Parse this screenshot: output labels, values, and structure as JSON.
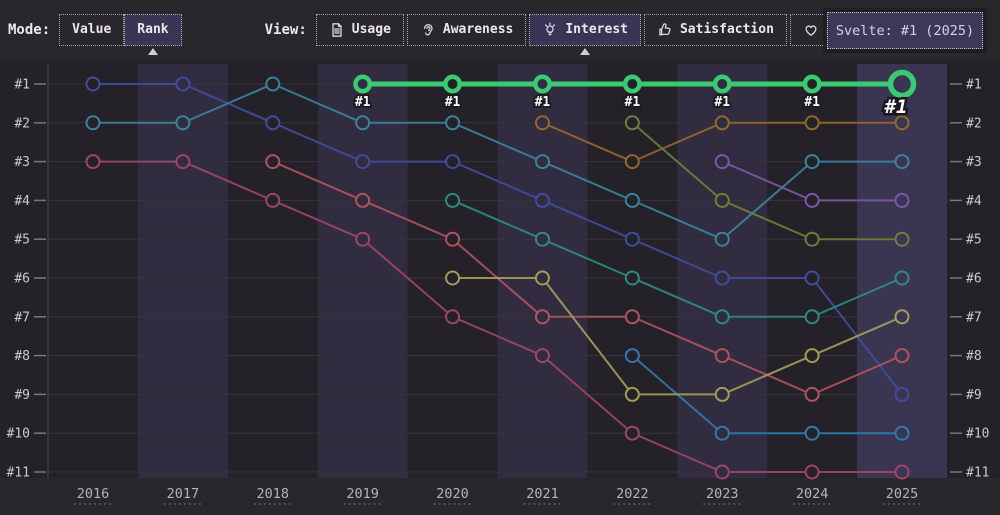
{
  "toolbar": {
    "mode_label": "Mode:",
    "modes": [
      {
        "label": "Value",
        "selected": false
      },
      {
        "label": "Rank",
        "selected": true
      }
    ],
    "view_label": "View:",
    "views": [
      {
        "label": "Usage",
        "icon": "document-icon",
        "selected": false
      },
      {
        "label": "Awareness",
        "icon": "ear-icon",
        "selected": false
      },
      {
        "label": "Interest",
        "icon": "lightbulb-icon",
        "selected": true
      },
      {
        "label": "Satisfaction",
        "icon": "thumbs-up-icon",
        "selected": false
      },
      {
        "label": "Appreciation",
        "icon": "heart-icon",
        "selected": false
      }
    ]
  },
  "tooltip": {
    "text": "Svelte: #1 (2025)"
  },
  "colors": {
    "accent_green": "#3acb72",
    "selected_bg": "#3b3455",
    "band": "#312c3f",
    "band_highlight": "#3a3551"
  },
  "chart_data": {
    "type": "line",
    "subtype": "bump-rank-chart",
    "x": [
      2016,
      2017,
      2018,
      2019,
      2020,
      2021,
      2022,
      2023,
      2024,
      2025
    ],
    "rank_labels": [
      "#1",
      "#2",
      "#3",
      "#4",
      "#5",
      "#6",
      "#7",
      "#8",
      "#9",
      "#10",
      "#11"
    ],
    "ylim": [
      1,
      11
    ],
    "grid": true,
    "highlight_year": 2025,
    "series": [
      {
        "name": "series-indigo",
        "color": "#3f4d9d",
        "highlight": false,
        "ranks": [
          1,
          1,
          2,
          3,
          3,
          4,
          5,
          6,
          6,
          9
        ]
      },
      {
        "name": "series-teal",
        "color": "#3a839b",
        "highlight": false,
        "ranks": [
          2,
          2,
          1,
          2,
          2,
          3,
          4,
          5,
          3,
          3
        ]
      },
      {
        "name": "series-maroon",
        "color": "#9d4566",
        "highlight": false,
        "ranks": [
          3,
          3,
          4,
          5,
          7,
          8,
          10,
          11,
          11,
          11
        ]
      },
      {
        "name": "series-blue",
        "color": "#2f7ab0",
        "highlight": false,
        "ranks": [
          null,
          null,
          null,
          null,
          null,
          null,
          8,
          10,
          10,
          10
        ]
      },
      {
        "name": "series-rose",
        "color": "#b0535f",
        "highlight": false,
        "ranks": [
          null,
          null,
          3,
          4,
          5,
          7,
          7,
          8,
          9,
          8
        ]
      },
      {
        "name": "series-darkteal",
        "color": "#2e8b82",
        "highlight": false,
        "ranks": [
          null,
          null,
          null,
          null,
          4,
          5,
          6,
          7,
          7,
          6
        ]
      },
      {
        "name": "series-olive",
        "color": "#9f9f58",
        "highlight": false,
        "ranks": [
          null,
          null,
          null,
          null,
          6,
          6,
          9,
          9,
          8,
          7
        ]
      },
      {
        "name": "series-brown",
        "color": "#93682e",
        "highlight": false,
        "ranks": [
          null,
          null,
          null,
          null,
          null,
          2,
          3,
          2,
          2,
          2
        ]
      },
      {
        "name": "series-darkgreen",
        "color": "#6b8038",
        "highlight": false,
        "ranks": [
          null,
          null,
          null,
          null,
          null,
          null,
          2,
          4,
          5,
          5
        ]
      },
      {
        "name": "series-purple",
        "color": "#7b57a8",
        "highlight": false,
        "ranks": [
          null,
          null,
          null,
          null,
          null,
          null,
          null,
          3,
          4,
          4
        ]
      },
      {
        "name": "series-svelte",
        "color": "#3acb72",
        "highlight": true,
        "ranks": [
          null,
          null,
          null,
          1,
          1,
          1,
          1,
          1,
          1,
          1
        ]
      }
    ]
  }
}
